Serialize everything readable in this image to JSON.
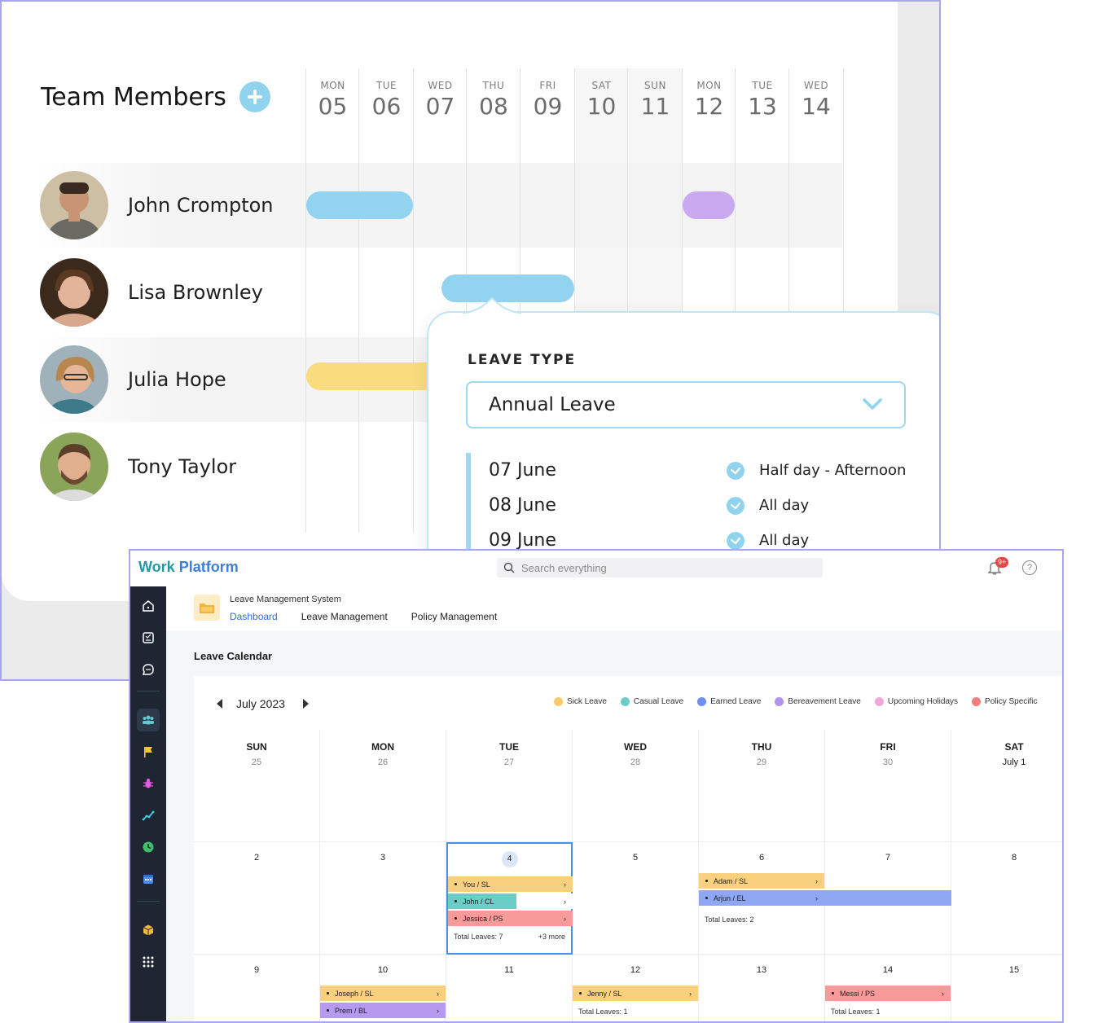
{
  "team_card": {
    "title": "Team Members",
    "days": [
      {
        "name": "MON",
        "num": "05"
      },
      {
        "name": "TUE",
        "num": "06"
      },
      {
        "name": "WED",
        "num": "07"
      },
      {
        "name": "THU",
        "num": "08"
      },
      {
        "name": "FRI",
        "num": "09"
      },
      {
        "name": "SAT",
        "num": "10"
      },
      {
        "name": "SUN",
        "num": "11"
      },
      {
        "name": "MON",
        "num": "12"
      },
      {
        "name": "TUE",
        "num": "13"
      },
      {
        "name": "WED",
        "num": "14"
      }
    ],
    "members": [
      {
        "name": "John Crompton"
      },
      {
        "name": "Lisa Brownley"
      },
      {
        "name": "Julia Hope"
      },
      {
        "name": "Tony Taylor"
      }
    ],
    "bar_colors": {
      "blue": "#92d4ef",
      "purple": "#c9a9ef",
      "yellow": "#f8dc7e"
    }
  },
  "popover": {
    "label": "LEAVE TYPE",
    "selected": "Annual Leave",
    "lines": [
      {
        "date": "07 June",
        "duration": "Half day - Afternoon"
      },
      {
        "date": "08 June",
        "duration": "All day"
      },
      {
        "date": "09 June",
        "duration": "All day"
      }
    ]
  },
  "app": {
    "brand_a": "Work",
    "brand_b": " Platform",
    "search_placeholder": "Search everything",
    "badge": "9+",
    "help": "?",
    "system_name": "Leave Management System",
    "nav": [
      "Dashboard",
      "Leave Management",
      "Policy Management"
    ],
    "page_title": "Leave Calendar",
    "month": "July 2023",
    "legend": [
      {
        "label": "Sick Leave",
        "color": "#f8cb6a"
      },
      {
        "label": "Casual Leave",
        "color": "#6cccc6"
      },
      {
        "label": "Earned Leave",
        "color": "#6f8ef0"
      },
      {
        "label": "Bereavement Leave",
        "color": "#b093ee"
      },
      {
        "label": "Upcoming Holidays",
        "color": "#f4a6d8"
      },
      {
        "label": "Policy Specific",
        "color": "#f47d7d"
      }
    ],
    "weekdays": [
      {
        "wd": "SUN",
        "d": "25"
      },
      {
        "wd": "MON",
        "d": "26"
      },
      {
        "wd": "TUE",
        "d": "27"
      },
      {
        "wd": "WED",
        "d": "28"
      },
      {
        "wd": "THU",
        "d": "29"
      },
      {
        "wd": "FRI",
        "d": "30"
      },
      {
        "wd": "SAT",
        "d": "July 1"
      }
    ],
    "week2": [
      "2",
      "3",
      "4",
      "5",
      "6",
      "7",
      "8"
    ],
    "week3": [
      "9",
      "10",
      "11",
      "12",
      "13",
      "14",
      "15"
    ],
    "chips": {
      "tue4": [
        "You / SL",
        "John / CL",
        "Jessica / PS"
      ],
      "tue4_total": "Total Leaves: 7",
      "tue4_more": "+3 more",
      "thu6": [
        "Adam / SL",
        "Arjun / EL"
      ],
      "thu6_total": "Total Leaves: 2",
      "mon10": [
        "Joseph / SL",
        "Prem / BL"
      ],
      "wed12": [
        "Jenny / SL"
      ],
      "wed12_total": "Total Leaves: 1",
      "fri14": [
        "Messi / PS"
      ],
      "fri14_total": "Total Leaves: 1"
    }
  }
}
